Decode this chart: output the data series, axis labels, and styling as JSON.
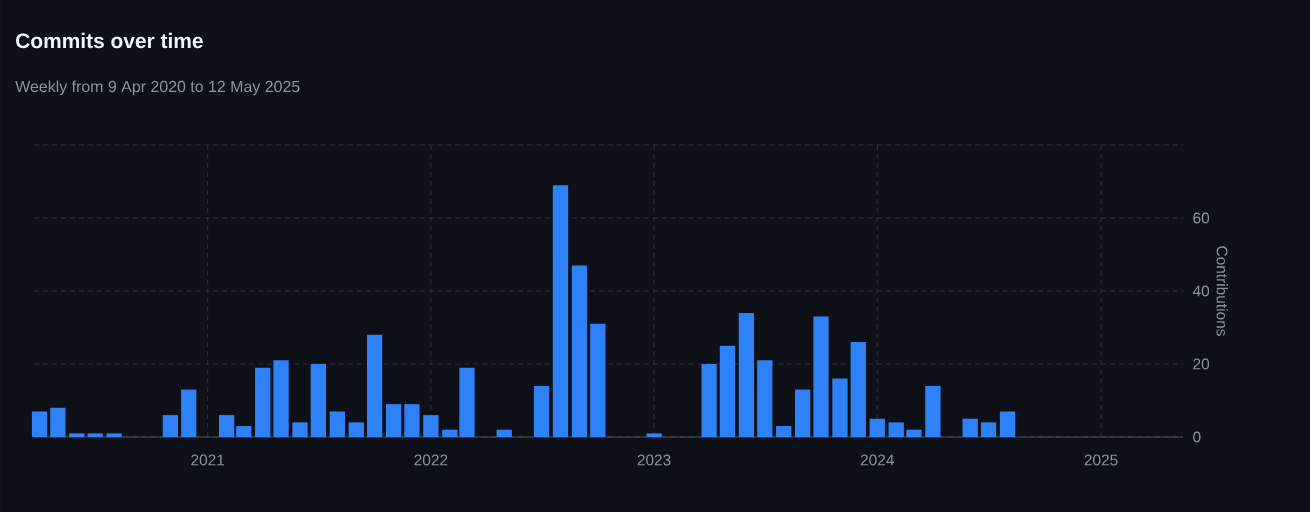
{
  "chart_data": {
    "type": "bar",
    "title": "Commits over time",
    "subtitle": "Weekly from 9 Apr 2020 to 12 May 2025",
    "ylabel": "Contributions",
    "x": [
      "2020-04",
      "2020-05",
      "2020-06",
      "2020-07",
      "2020-08",
      "2020-09",
      "2020-10",
      "2020-11",
      "2020-12",
      "2021-01",
      "2021-02",
      "2021-03",
      "2021-04",
      "2021-05",
      "2021-06",
      "2021-07",
      "2021-08",
      "2021-09",
      "2021-10",
      "2021-11",
      "2021-12",
      "2022-01",
      "2022-02",
      "2022-03",
      "2022-04",
      "2022-05",
      "2022-06",
      "2022-07",
      "2022-08",
      "2022-09",
      "2022-10",
      "2022-11",
      "2022-12",
      "2023-01",
      "2023-02",
      "2023-03",
      "2023-04",
      "2023-05",
      "2023-06",
      "2023-07",
      "2023-08",
      "2023-09",
      "2023-10",
      "2023-11",
      "2023-12",
      "2024-01",
      "2024-02",
      "2024-03",
      "2024-04",
      "2024-05",
      "2024-06",
      "2024-07",
      "2024-08",
      "2024-09",
      "2024-10",
      "2024-11",
      "2024-12",
      "2025-01",
      "2025-02",
      "2025-03",
      "2025-04",
      "2025-05"
    ],
    "values": [
      7,
      8,
      1,
      1,
      1,
      0,
      0,
      6,
      13,
      0,
      6,
      3,
      19,
      21,
      4,
      20,
      7,
      4,
      28,
      9,
      9,
      6,
      2,
      19,
      0,
      2,
      0,
      14,
      69,
      47,
      31,
      0,
      0,
      1,
      0,
      0,
      20,
      25,
      34,
      21,
      3,
      13,
      33,
      16,
      26,
      5,
      4,
      2,
      14,
      0,
      5,
      4,
      7,
      0,
      0,
      0,
      0,
      0,
      0,
      0,
      0,
      0
    ],
    "color": "#2f81f7",
    "xlim": [
      "2020-03-23",
      "2025-05-15"
    ],
    "xticks": [
      "2021",
      "2022",
      "2023",
      "2024",
      "2025"
    ],
    "ylim": [
      0,
      80
    ],
    "yticks": [
      0,
      20,
      40,
      60,
      {
        "value": 80,
        "label": null
      }
    ],
    "grid": true
  }
}
